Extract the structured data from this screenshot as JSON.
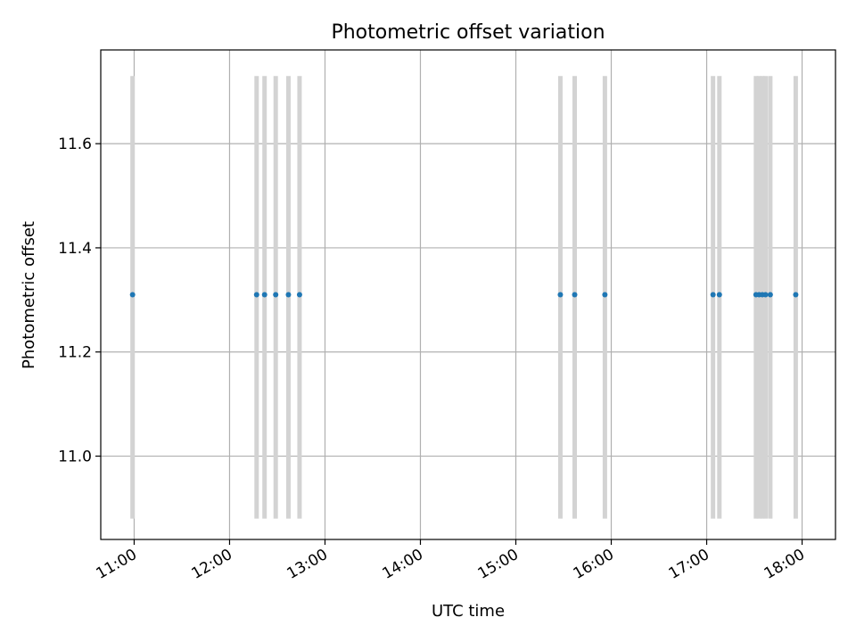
{
  "chart_data": {
    "type": "scatter",
    "title": "Photometric offset variation",
    "xlabel": "UTC time",
    "ylabel": "Photometric offset",
    "x_axis": {
      "type": "time",
      "lim": [
        "10:39",
        "18:21"
      ],
      "ticks": [
        "11:00",
        "12:00",
        "13:00",
        "14:00",
        "15:00",
        "16:00",
        "17:00",
        "18:00"
      ]
    },
    "y_axis": {
      "lim": [
        10.84,
        11.78
      ],
      "ticks": [
        11.0,
        11.2,
        11.4,
        11.6
      ],
      "tick_labels": [
        "11.0",
        "11.2",
        "11.4",
        "11.6"
      ]
    },
    "grid": true,
    "error_bars": {
      "color": "#d3d3d3",
      "low": 10.88,
      "high": 11.73
    },
    "series": [
      {
        "color": "#1f77b4",
        "points": [
          {
            "x": "10:59",
            "y": 11.31
          },
          {
            "x": "12:17",
            "y": 11.31
          },
          {
            "x": "12:22",
            "y": 11.31
          },
          {
            "x": "12:29",
            "y": 11.31
          },
          {
            "x": "12:37",
            "y": 11.31
          },
          {
            "x": "12:44",
            "y": 11.31
          },
          {
            "x": "15:28",
            "y": 11.31
          },
          {
            "x": "15:37",
            "y": 11.31
          },
          {
            "x": "15:56",
            "y": 11.31
          },
          {
            "x": "17:04",
            "y": 11.31
          },
          {
            "x": "17:08",
            "y": 11.31
          },
          {
            "x": "17:31",
            "y": 11.31
          },
          {
            "x": "17:33",
            "y": 11.31
          },
          {
            "x": "17:35",
            "y": 11.31
          },
          {
            "x": "17:37",
            "y": 11.31
          },
          {
            "x": "17:40",
            "y": 11.31
          },
          {
            "x": "17:56",
            "y": 11.31
          }
        ]
      }
    ]
  }
}
